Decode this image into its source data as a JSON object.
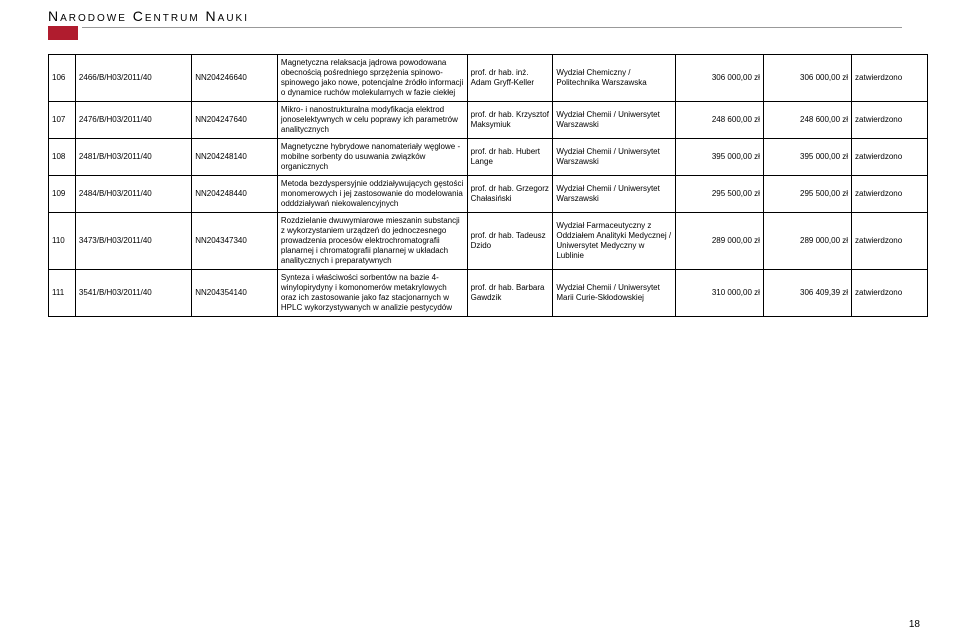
{
  "header": {
    "title": "Narodowe Centrum Nauki",
    "accent_color": "#b01c2e"
  },
  "page_number": "18",
  "rows": [
    {
      "idx": "106",
      "ref": "2466/B/H03/2011/40",
      "nn": "NN204246640",
      "title": "Magnetyczna relaksacja jądrowa powodowana obecnością pośredniego sprzężenia spinowo-spinowego jako nowe, potencjalne źródło informacji o dynamice ruchów molekularnych w fazie ciekłej",
      "person": "prof. dr hab. inż. Adam Gryff-Keller",
      "inst": "Wydział Chemiczny / Politechnika Warszawska",
      "amt1": "306 000,00 zł",
      "amt2": "306 000,00 zł",
      "status": "zatwierdzono"
    },
    {
      "idx": "107",
      "ref": "2476/B/H03/2011/40",
      "nn": "NN204247640",
      "title": "Mikro- i nanostrukturalna modyfikacja elektrod jonoselektywnych w celu poprawy ich parametrów analitycznych",
      "person": "prof. dr hab. Krzysztof Maksymiuk",
      "inst": "Wydział Chemii / Uniwersytet Warszawski",
      "amt1": "248 600,00 zł",
      "amt2": "248 600,00 zł",
      "status": "zatwierdzono"
    },
    {
      "idx": "108",
      "ref": "2481/B/H03/2011/40",
      "nn": "NN204248140",
      "title": "Magnetyczne hybrydowe nanomateriały węglowe - mobilne sorbenty do usuwania związków organicznych",
      "person": "prof. dr hab. Hubert Lange",
      "inst": "Wydział Chemii / Uniwersytet Warszawski",
      "amt1": "395 000,00 zł",
      "amt2": "395 000,00 zł",
      "status": "zatwierdzono"
    },
    {
      "idx": "109",
      "ref": "2484/B/H03/2011/40",
      "nn": "NN204248440",
      "title": "Metoda bezdyspersyjnie oddziaływujących gęstości monomerowych i jej zastosowanie do modelowania odddziaływań niekowalencyjnych",
      "person": "prof. dr hab. Grzegorz Chałasiński",
      "inst": "Wydział Chemii / Uniwersytet Warszawski",
      "amt1": "295 500,00 zł",
      "amt2": "295 500,00 zł",
      "status": "zatwierdzono"
    },
    {
      "idx": "110",
      "ref": "3473/B/H03/2011/40",
      "nn": "NN204347340",
      "title": "Rozdzielanie dwuwymiarowe mieszanin substancji z wykorzystaniem urządzeń do jednoczesnego prowadzenia procesów elektrochromatografii planarnej i chromatografii planarnej w układach analitycznych i preparatywnych",
      "person": "prof. dr hab. Tadeusz Dzido",
      "inst": "Wydział Farmaceutyczny z Oddziałem Analityki Medycznej / Uniwersytet Medyczny w Lublinie",
      "amt1": "289 000,00 zł",
      "amt2": "289 000,00 zł",
      "status": "zatwierdzono"
    },
    {
      "idx": "111",
      "ref": "3541/B/H03/2011/40",
      "nn": "NN204354140",
      "title": "Synteza i właściwości sorbentów na bazie 4-winylopirydyny i komonomerów metakrylowych oraz ich zastosowanie jako faz stacjonarnych w HPLC wykorzystywanych w analizie pestycydów",
      "person": "prof. dr hab. Barbara Gawdzik",
      "inst": "Wydział Chemii / Uniwersytet Marii Curie-Skłodowskiej",
      "amt1": "310 000,00 zł",
      "amt2": "306 409,39 zł",
      "status": "zatwierdzono"
    }
  ]
}
